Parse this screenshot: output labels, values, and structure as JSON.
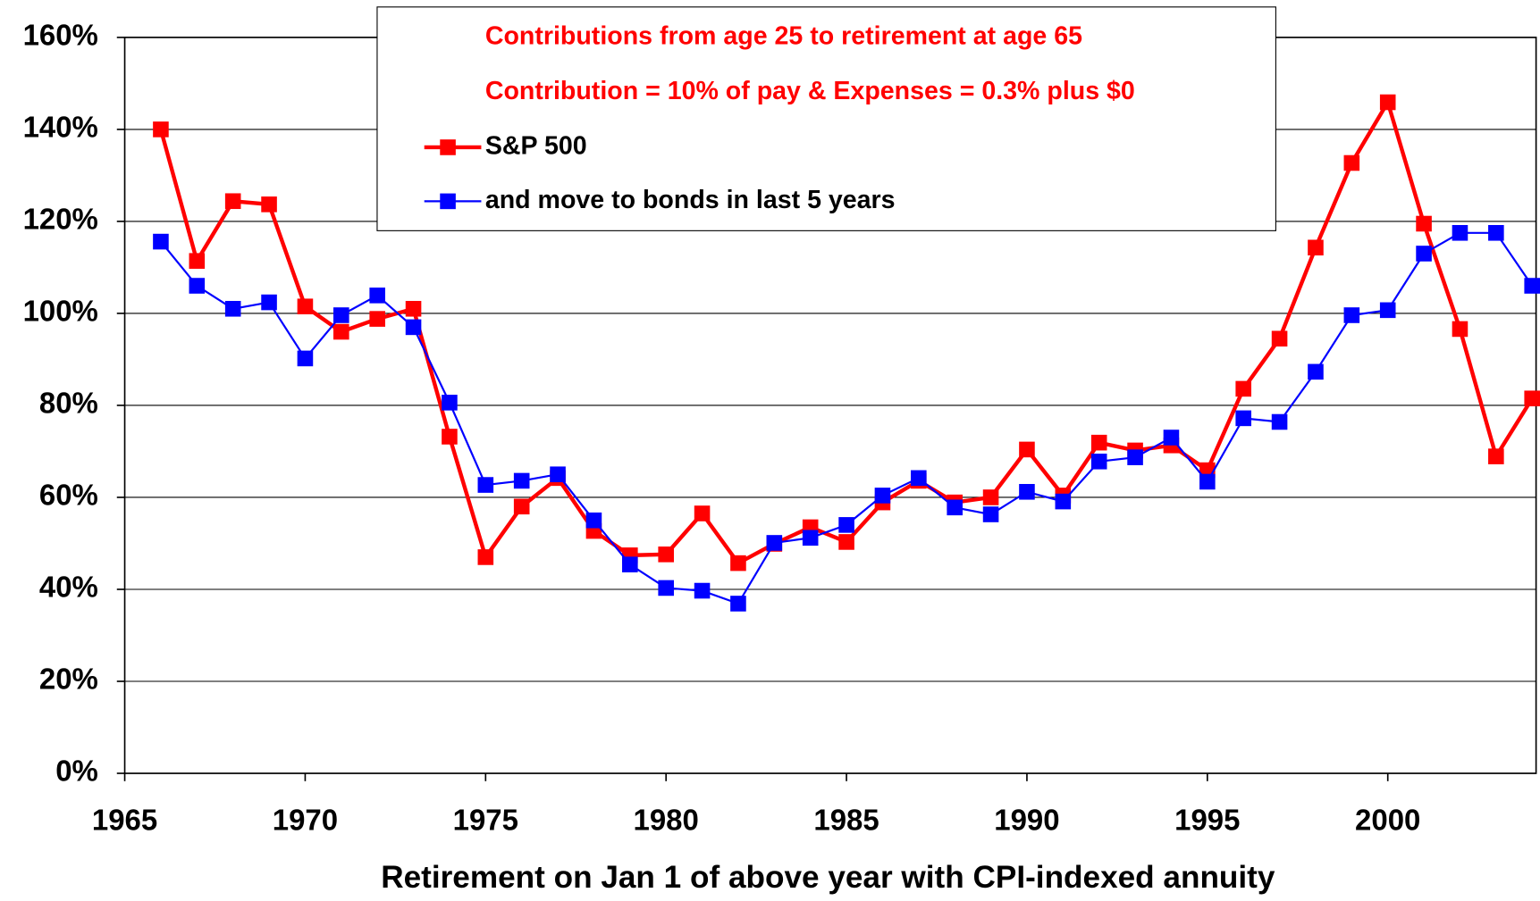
{
  "chart_data": {
    "type": "line",
    "x_label": "Retirement on Jan 1 of above year with CPI-indexed annuity",
    "annotations": [
      "Contributions from age 25 to retirement at age 65",
      "Contribution = 10% of pay  &  Expenses = 0.3% plus $0"
    ],
    "x": [
      1966,
      1967,
      1968,
      1969,
      1970,
      1971,
      1972,
      1973,
      1974,
      1975,
      1976,
      1977,
      1978,
      1979,
      1980,
      1981,
      1982,
      1983,
      1984,
      1985,
      1986,
      1987,
      1988,
      1989,
      1990,
      1991,
      1992,
      1993,
      1994,
      1995,
      1996,
      1997,
      1998,
      1999,
      2000,
      2001,
      2002,
      2003,
      2004
    ],
    "series": [
      {
        "name": "S&P 500",
        "color": "#ff0000",
        "values": [
          140,
          111.4,
          124.4,
          123.7,
          101.5,
          96,
          98.8,
          101,
          73.2,
          47,
          58,
          64.2,
          52.7,
          47.4,
          47.6,
          56.5,
          45.7,
          49.9,
          53.5,
          50.3,
          58.9,
          63.6,
          58.9,
          60,
          70.4,
          60.4,
          71.9,
          70.2,
          71.3,
          65.9,
          83.6,
          94.5,
          114.3,
          132.7,
          145.9,
          119.5,
          96.6,
          68.9,
          81.5
        ]
      },
      {
        "name": "and move to bonds in last 5 years",
        "color": "#0000ff",
        "values": [
          115.6,
          106,
          101,
          102.4,
          90.2,
          99.6,
          103.9,
          97,
          80.6,
          62.7,
          63.6,
          65,
          55,
          45.4,
          40.3,
          39.7,
          36.9,
          50.1,
          51.2,
          54,
          60.4,
          64.2,
          57.8,
          56.3,
          61.2,
          59.1,
          67.8,
          68.7,
          73,
          63.4,
          77.2,
          76.4,
          87.3,
          99.6,
          100.7,
          113,
          117.5,
          117.5,
          106
        ]
      }
    ],
    "xlim": [
      1965,
      2004
    ],
    "xticks": [
      1965,
      1970,
      1975,
      1980,
      1985,
      1990,
      1995,
      2000
    ],
    "ylim": [
      0,
      160
    ],
    "yticks": [
      {
        "value": 0,
        "label": "0%"
      },
      {
        "value": 20,
        "label": "20%"
      },
      {
        "value": 40,
        "label": "40%"
      },
      {
        "value": 60,
        "label": "60%"
      },
      {
        "value": 80,
        "label": "80%"
      },
      {
        "value": 100,
        "label": "100%"
      },
      {
        "value": 120,
        "label": "120%"
      },
      {
        "value": 140,
        "label": "140%"
      },
      {
        "value": 160,
        "label": "160%"
      }
    ],
    "grid": true
  }
}
